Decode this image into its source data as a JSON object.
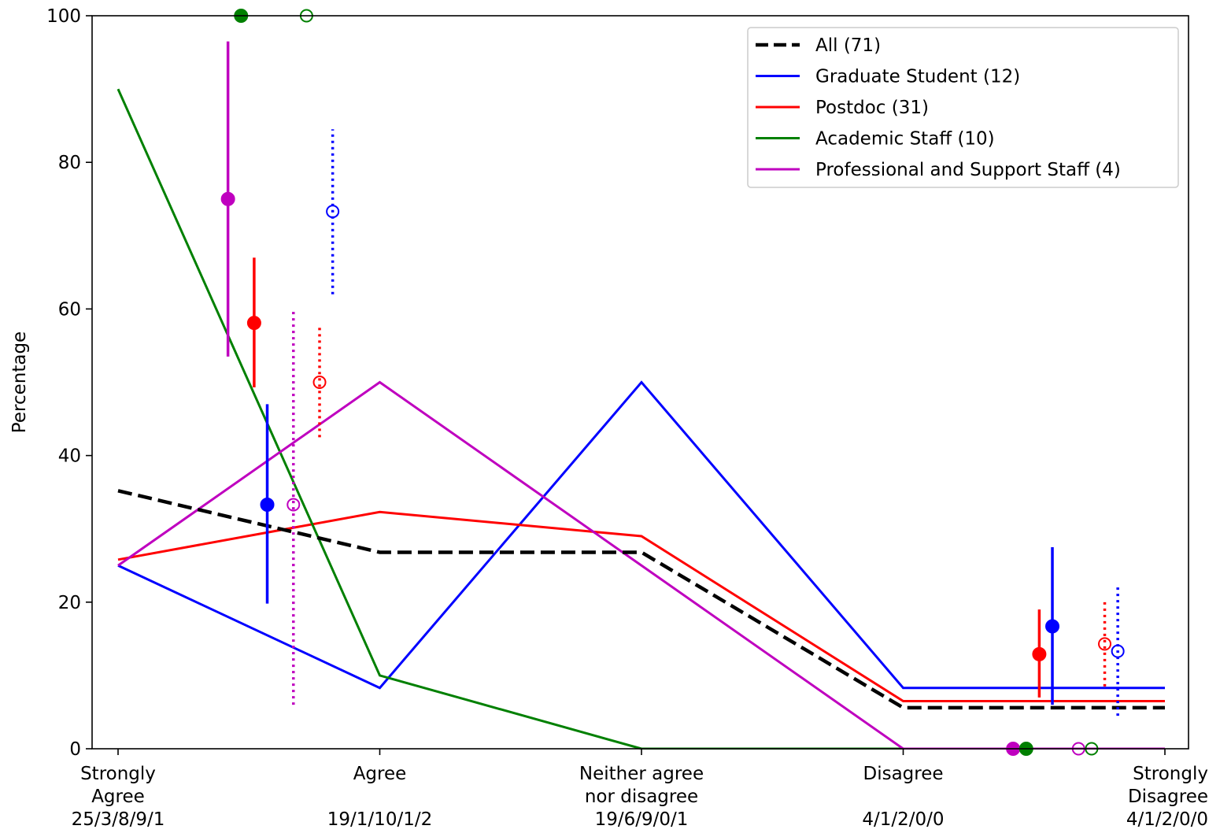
{
  "chart_data": {
    "type": "line",
    "ylabel": "Percentage",
    "ylim": [
      0,
      100
    ],
    "yticks": [
      "0",
      "20",
      "40",
      "60",
      "80",
      "100"
    ],
    "categories": [
      {
        "lines": [
          "Strongly",
          "Agree",
          "25/3/8/9/1"
        ]
      },
      {
        "lines": [
          "Agree",
          "",
          "19/1/10/1/2"
        ]
      },
      {
        "lines": [
          "Neither agree",
          "nor disagree",
          "19/6/9/0/1"
        ]
      },
      {
        "lines": [
          "Disagree",
          "",
          "4/1/2/0/0"
        ]
      },
      {
        "lines": [
          "Strongly",
          "Disagree",
          "4/1/2/0/0"
        ]
      }
    ],
    "legend_position": "top-right",
    "series": [
      {
        "name": "All (71)",
        "color": "#000000",
        "dashed": true,
        "values": [
          35.2,
          26.8,
          26.8,
          5.6,
          5.6
        ]
      },
      {
        "name": "Graduate Student (12)",
        "color": "#0000ff",
        "dashed": false,
        "values": [
          25.0,
          8.3,
          50.0,
          8.3,
          8.3
        ]
      },
      {
        "name": "Postdoc (31)",
        "color": "#ff0000",
        "dashed": false,
        "values": [
          25.8,
          32.3,
          29.0,
          6.5,
          6.5
        ]
      },
      {
        "name": "Academic Staff (10)",
        "color": "#008000",
        "dashed": false,
        "values": [
          90.0,
          10.0,
          0.0,
          0.0,
          0.0
        ]
      },
      {
        "name": "Professional and Support Staff (4)",
        "color": "#bf00bf",
        "dashed": false,
        "values": [
          25.0,
          50.0,
          25.0,
          0.0,
          0.0
        ]
      }
    ],
    "error_points": [
      {
        "x": 0.42,
        "y": 75.0,
        "err_low": 53.5,
        "err_high": 96.5,
        "color": "#bf00bf",
        "filled": true
      },
      {
        "x": 0.52,
        "y": 58.1,
        "err_low": 49.3,
        "err_high": 67.0,
        "color": "#ff0000",
        "filled": true
      },
      {
        "x": 0.47,
        "y": 100.0,
        "err_low": 100.0,
        "err_high": 100.0,
        "color": "#008000",
        "filled": true
      },
      {
        "x": 0.57,
        "y": 33.3,
        "err_low": 19.8,
        "err_high": 47.0,
        "color": "#0000ff",
        "filled": true
      },
      {
        "x": 0.67,
        "y": 33.3,
        "err_low": 6.0,
        "err_high": 60.0,
        "color": "#bf00bf",
        "filled": false
      },
      {
        "x": 0.77,
        "y": 50.0,
        "err_low": 42.5,
        "err_high": 57.5,
        "color": "#ff0000",
        "filled": false
      },
      {
        "x": 0.72,
        "y": 100.0,
        "err_low": 100.0,
        "err_high": 100.0,
        "color": "#008000",
        "filled": false
      },
      {
        "x": 0.82,
        "y": 73.3,
        "err_low": 62.0,
        "err_high": 84.5,
        "color": "#0000ff",
        "filled": false
      },
      {
        "x": 3.42,
        "y": 0.0,
        "err_low": 0.0,
        "err_high": 0.0,
        "color": "#bf00bf",
        "filled": true
      },
      {
        "x": 3.52,
        "y": 12.9,
        "err_low": 7.0,
        "err_high": 19.0,
        "color": "#ff0000",
        "filled": true
      },
      {
        "x": 3.47,
        "y": 0.0,
        "err_low": 0.0,
        "err_high": 0.0,
        "color": "#008000",
        "filled": true
      },
      {
        "x": 3.57,
        "y": 16.7,
        "err_low": 6.0,
        "err_high": 27.5,
        "color": "#0000ff",
        "filled": true
      },
      {
        "x": 3.67,
        "y": 0.0,
        "err_low": 0.0,
        "err_high": 0.0,
        "color": "#bf00bf",
        "filled": false
      },
      {
        "x": 3.77,
        "y": 14.3,
        "err_low": 8.5,
        "err_high": 20.0,
        "color": "#ff0000",
        "filled": false
      },
      {
        "x": 3.72,
        "y": 0.0,
        "err_low": 0.0,
        "err_high": 0.0,
        "color": "#008000",
        "filled": false
      },
      {
        "x": 3.82,
        "y": 13.3,
        "err_low": 4.5,
        "err_high": 22.5,
        "color": "#0000ff",
        "filled": false
      }
    ]
  }
}
